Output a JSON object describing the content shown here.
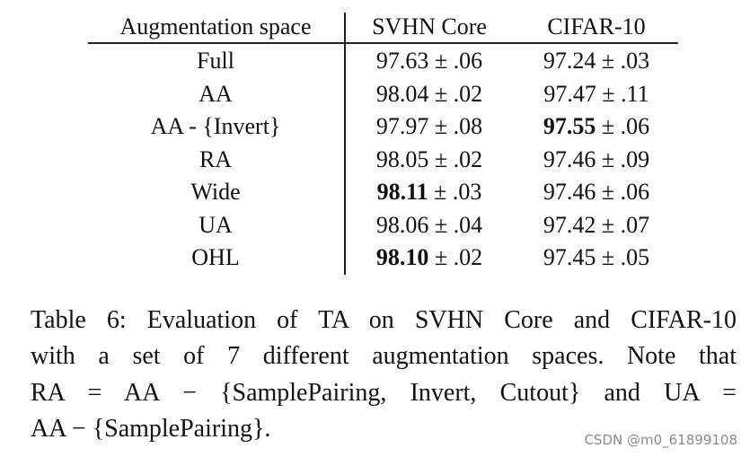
{
  "table": {
    "header": [
      "Augmentation space",
      "SVHN Core",
      "CIFAR-10"
    ],
    "pm": "±",
    "rows": [
      {
        "space": "Full",
        "cells": [
          {
            "mean": "97.63",
            "std": ".06",
            "bold": false
          },
          {
            "mean": "97.24",
            "std": ".03",
            "bold": false
          }
        ]
      },
      {
        "space": "AA",
        "cells": [
          {
            "mean": "98.04",
            "std": ".02",
            "bold": false
          },
          {
            "mean": "97.47",
            "std": ".11",
            "bold": false
          }
        ]
      },
      {
        "space": "AA - {Invert}",
        "cells": [
          {
            "mean": "97.97",
            "std": ".08",
            "bold": false
          },
          {
            "mean": "97.55",
            "std": ".06",
            "bold": true
          }
        ]
      },
      {
        "space": "RA",
        "cells": [
          {
            "mean": "98.05",
            "std": ".02",
            "bold": false
          },
          {
            "mean": "97.46",
            "std": ".09",
            "bold": false
          }
        ]
      },
      {
        "space": "Wide",
        "cells": [
          {
            "mean": "98.11",
            "std": ".03",
            "bold": true
          },
          {
            "mean": "97.46",
            "std": ".06",
            "bold": false
          }
        ]
      },
      {
        "space": "UA",
        "cells": [
          {
            "mean": "98.06",
            "std": ".04",
            "bold": false
          },
          {
            "mean": "97.42",
            "std": ".07",
            "bold": false
          }
        ]
      },
      {
        "space": "OHL",
        "cells": [
          {
            "mean": "98.10",
            "std": ".02",
            "bold": true
          },
          {
            "mean": "97.45",
            "std": ".05",
            "bold": false
          }
        ]
      }
    ]
  },
  "caption": {
    "lines": [
      "Table 6: Evaluation of TA on SVHN Core and CIFAR-10",
      "with a set of 7 different augmentation spaces.  Note that",
      "RA = AA − {SamplePairing, Invert, Cutout} and UA =",
      "AA − {SamplePairing}."
    ]
  },
  "watermark": "CSDN @m0_61899108"
}
